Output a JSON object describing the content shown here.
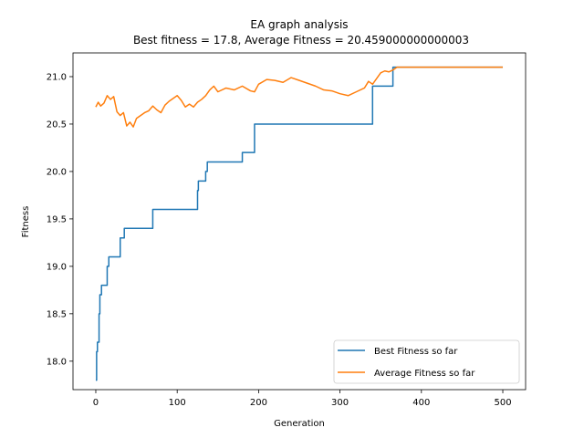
{
  "chart_data": {
    "type": "line",
    "title": "EA graph analysis",
    "subtitle": "Best fitness = 17.8, Average Fitness = 20.459000000000003",
    "xlabel": "Generation",
    "ylabel": "Fitness",
    "xlim": [
      -28,
      528
    ],
    "ylim": [
      17.7,
      21.25
    ],
    "xticks": [
      0,
      100,
      200,
      300,
      400,
      500
    ],
    "yticks": [
      18.0,
      18.5,
      19.0,
      19.5,
      20.0,
      20.5,
      21.0
    ],
    "xtick_labels": [
      "0",
      "100",
      "200",
      "300",
      "400",
      "500"
    ],
    "ytick_labels": [
      "18.0",
      "18.5",
      "19.0",
      "19.5",
      "20.0",
      "20.5",
      "21.0"
    ],
    "grid": false,
    "legend_position": "lower-right",
    "series": [
      {
        "name": "Best Fitness so far",
        "color": "#1f77b4",
        "step": true,
        "x": [
          0,
          1,
          2,
          4,
          5,
          6,
          7,
          10,
          14,
          16,
          17,
          30,
          35,
          38,
          70,
          72,
          125,
          126,
          128,
          135,
          137,
          138,
          180,
          182,
          195,
          196,
          340,
          342,
          365,
          367,
          500
        ],
        "y": [
          17.8,
          18.1,
          18.2,
          18.5,
          18.7,
          18.7,
          18.8,
          18.8,
          19.0,
          19.1,
          19.1,
          19.3,
          19.4,
          19.4,
          19.6,
          19.6,
          19.8,
          19.9,
          19.9,
          20.0,
          20.1,
          20.1,
          20.2,
          20.2,
          20.5,
          20.5,
          20.9,
          20.9,
          21.1,
          21.1,
          21.1
        ]
      },
      {
        "name": "Average Fitness so far",
        "color": "#ff7f0e",
        "step": false,
        "x": [
          0,
          3,
          6,
          10,
          14,
          18,
          22,
          26,
          30,
          34,
          38,
          42,
          46,
          50,
          55,
          60,
          65,
          70,
          75,
          80,
          85,
          90,
          95,
          100,
          105,
          110,
          115,
          120,
          125,
          130,
          135,
          140,
          145,
          150,
          160,
          170,
          180,
          190,
          195,
          200,
          210,
          220,
          230,
          240,
          250,
          260,
          270,
          280,
          290,
          300,
          310,
          320,
          330,
          335,
          340,
          345,
          350,
          355,
          360,
          365,
          370,
          380,
          400,
          450,
          500
        ],
        "y": [
          20.68,
          20.73,
          20.69,
          20.72,
          20.8,
          20.76,
          20.79,
          20.63,
          20.59,
          20.62,
          20.48,
          20.52,
          20.47,
          20.56,
          20.59,
          20.62,
          20.64,
          20.69,
          20.65,
          20.62,
          20.7,
          20.74,
          20.77,
          20.8,
          20.75,
          20.68,
          20.71,
          20.68,
          20.73,
          20.76,
          20.8,
          20.86,
          20.9,
          20.84,
          20.88,
          20.86,
          20.9,
          20.85,
          20.84,
          20.92,
          20.97,
          20.96,
          20.94,
          20.99,
          20.96,
          20.93,
          20.9,
          20.86,
          20.85,
          20.82,
          20.8,
          20.84,
          20.88,
          20.95,
          20.92,
          20.98,
          21.04,
          21.06,
          21.05,
          21.07,
          21.1,
          21.1,
          21.1,
          21.1,
          21.1
        ]
      }
    ]
  }
}
